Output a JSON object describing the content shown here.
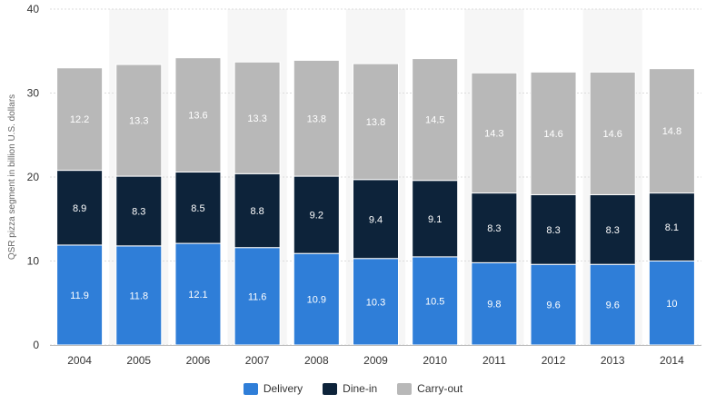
{
  "chart_data": {
    "type": "bar",
    "stacked": true,
    "categories": [
      "2004",
      "2005",
      "2006",
      "2007",
      "2008",
      "2009",
      "2010",
      "2011",
      "2012",
      "2013",
      "2014"
    ],
    "series": [
      {
        "name": "Delivery",
        "color": "#2f7ed8",
        "values": [
          11.9,
          11.8,
          12.1,
          11.6,
          10.9,
          10.3,
          10.5,
          9.8,
          9.6,
          9.6,
          10
        ]
      },
      {
        "name": "Dine-in",
        "color": "#0d233a",
        "values": [
          8.9,
          8.3,
          8.5,
          8.8,
          9.2,
          9.4,
          9.1,
          8.3,
          8.3,
          8.3,
          8.1
        ]
      },
      {
        "name": "Carry-out",
        "color": "#b8b8b8",
        "values": [
          12.2,
          13.3,
          13.6,
          13.3,
          13.8,
          13.8,
          14.5,
          14.3,
          14.6,
          14.6,
          14.8
        ]
      }
    ],
    "ylabel": "QSR pizza segment in billion U.S. dollars",
    "yticks": [
      0,
      10,
      20,
      30,
      40
    ],
    "ylim": [
      0,
      40
    ],
    "grid": true,
    "legend_position": "bottom"
  }
}
